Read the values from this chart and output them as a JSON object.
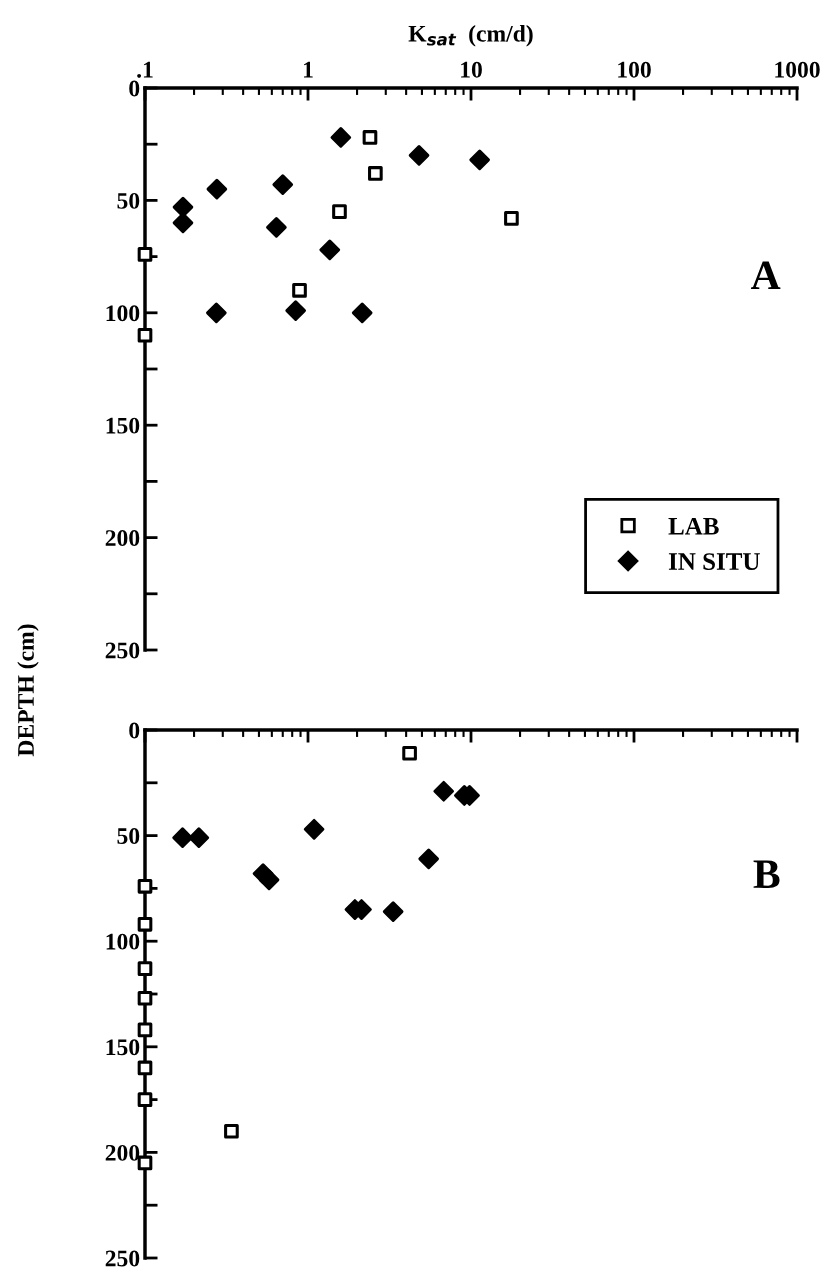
{
  "chart_data": [
    {
      "type": "scatter",
      "xlabel": "K$_{sat}$  (cm/d)",
      "ylabel": "DEPTH (cm)",
      "log": "x",
      "xlim": [
        0.1,
        1000
      ],
      "ylim": [
        250,
        0
      ],
      "xticks": [
        {
          "value": 0.1,
          "label": ".1"
        },
        1,
        10,
        100,
        1000
      ],
      "yticks": [
        0,
        {
          "value": 25,
          "label": null
        },
        50,
        {
          "value": 75,
          "label": null
        },
        100,
        {
          "value": 125,
          "label": null
        },
        150,
        {
          "value": 175,
          "label": null
        },
        200,
        {
          "value": 225,
          "label": null
        },
        250
      ],
      "grid": false,
      "legend": "lower right",
      "annotations": [
        "A"
      ],
      "series": [
        {
          "name": "LAB",
          "color": "#000000",
          "marker": "square",
          "x": [
            2.4,
            2.59,
            1.56,
            17.7,
            0.1,
            0.887,
            0.1
          ],
          "values": [
            22,
            38,
            55,
            58,
            74,
            90,
            110
          ]
        },
        {
          "name": "IN SITU",
          "color": "#000000",
          "marker": "diamond",
          "x": [
            1.59,
            4.8,
            11.3,
            0.276,
            0.7,
            0.171,
            0.171,
            0.64,
            1.36,
            0.274,
            0.84,
            2.15
          ],
          "values": [
            22,
            30,
            32,
            45,
            43,
            53,
            60,
            62,
            72,
            100,
            99,
            100
          ]
        }
      ]
    },
    {
      "type": "scatter",
      "log": "x",
      "xlim": [
        0.1,
        1000
      ],
      "ylim": [
        250,
        0
      ],
      "tick_labels": "y",
      "xticks": [
        {
          "value": 0.1,
          "label": null
        },
        {
          "value": 1,
          "label": null
        },
        {
          "value": 10,
          "label": null
        },
        {
          "value": 100,
          "label": null
        },
        {
          "value": 1000,
          "label": null
        }
      ],
      "yticks": [
        0,
        {
          "value": 25,
          "label": null
        },
        50,
        {
          "value": 75,
          "label": null
        },
        100,
        {
          "value": 125,
          "label": null
        },
        150,
        {
          "value": 175,
          "label": null
        },
        200,
        {
          "value": 225,
          "label": null
        },
        250
      ],
      "grid": false,
      "annotations": [
        "B"
      ],
      "series": [
        {
          "color": "#000000",
          "marker": "square",
          "x": [
            4.2,
            0.1,
            0.1,
            0.1,
            0.1,
            0.1,
            0.1,
            0.1,
            0.339,
            0.1
          ],
          "values": [
            11,
            74,
            92,
            113,
            127,
            142,
            160,
            175,
            190,
            205
          ]
        },
        {
          "color": "#000000",
          "marker": "diamond",
          "x": [
            0.17,
            0.214,
            0.53,
            0.577,
            1.09,
            1.94,
            2.13,
            3.33,
            5.5,
            6.8,
            9.1,
            9.8
          ],
          "values": [
            51,
            51,
            68,
            71,
            47,
            85,
            85,
            86,
            61,
            29,
            31,
            31
          ]
        }
      ]
    }
  ]
}
